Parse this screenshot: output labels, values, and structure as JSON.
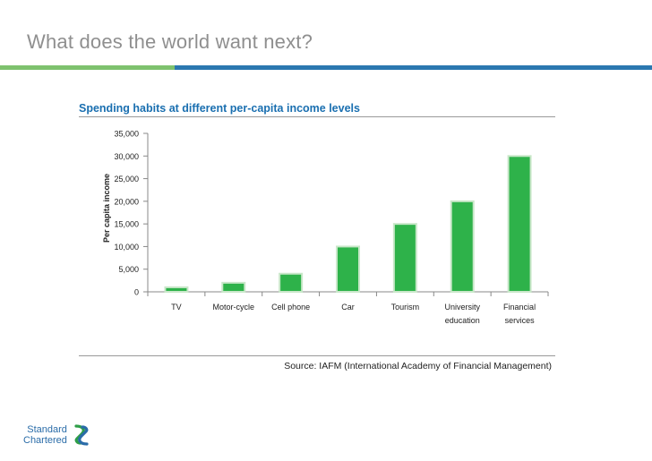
{
  "slide": {
    "title": "What does the world want next?"
  },
  "footer": {
    "source": "Source: IAFM (International Academy of Financial Management)",
    "logo_line1": "Standard",
    "logo_line2": "Chartered"
  },
  "colors": {
    "bar": "#2eb24a",
    "bar_edge": "#c9e7c9",
    "axis": "#888888",
    "title_blue": "#1a6fb0"
  },
  "chart_data": {
    "type": "bar",
    "title": "Spending habits at different per-capita income levels",
    "xlabel": "",
    "ylabel": "Per capita income",
    "categories": [
      "TV",
      "Motor-cycle",
      "Cell phone",
      "Car",
      "Tourism",
      "University education",
      "Financial services"
    ],
    "category_lines": [
      [
        "TV"
      ],
      [
        "Motor-cycle"
      ],
      [
        "Cell phone"
      ],
      [
        "Car"
      ],
      [
        "Tourism"
      ],
      [
        "University",
        "education"
      ],
      [
        "Financial",
        "services"
      ]
    ],
    "values": [
      1000,
      2000,
      4000,
      10000,
      15000,
      20000,
      30000
    ],
    "ylim": [
      0,
      35000
    ],
    "yticks": [
      0,
      5000,
      10000,
      15000,
      20000,
      25000,
      30000,
      35000
    ],
    "ytick_labels": [
      "0",
      "5,000",
      "10,000",
      "15,000",
      "20,000",
      "25,000",
      "30,000",
      "35,000"
    ],
    "grid": false,
    "legend": "none"
  }
}
